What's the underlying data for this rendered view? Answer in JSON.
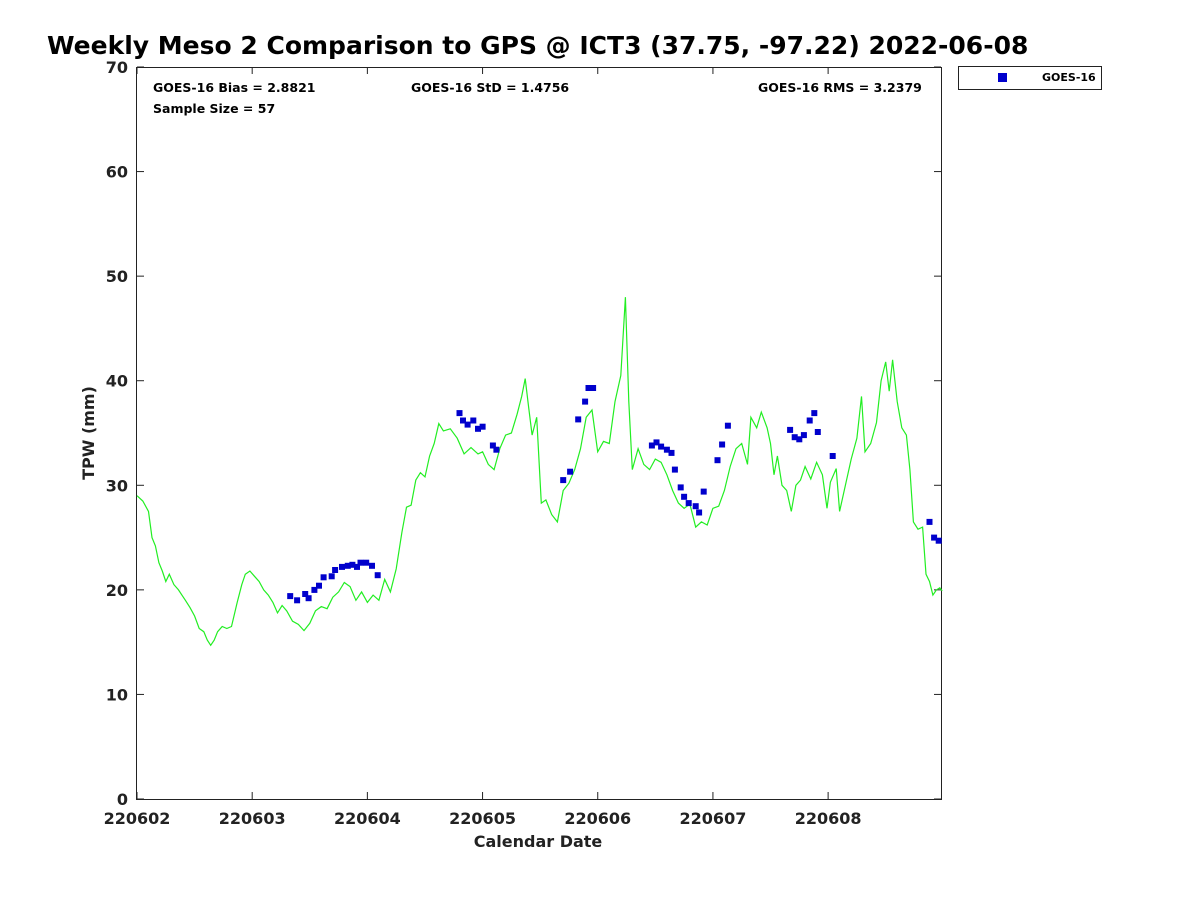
{
  "chart_data": {
    "type": "scatter",
    "title": "Weekly Meso 2 Comparison to GPS @ ICT3 (37.75, -97.22) 2022-06-08",
    "xlabel": "Calendar Date",
    "ylabel": "TPW (mm)",
    "xlim": [
      0,
      6.98
    ],
    "ylim": [
      0,
      70
    ],
    "yticks": [
      0,
      10,
      20,
      30,
      40,
      50,
      60,
      70
    ],
    "xticks": [
      {
        "value": 0,
        "label": "220602"
      },
      {
        "value": 1,
        "label": "220603"
      },
      {
        "value": 2,
        "label": "220604"
      },
      {
        "value": 3,
        "label": "220605"
      },
      {
        "value": 4,
        "label": "220606"
      },
      {
        "value": 5,
        "label": "220607"
      },
      {
        "value": 6,
        "label": "220608"
      }
    ],
    "x_note_units": "days after 220602",
    "grid": false,
    "legend_position": "top-right",
    "stats": {
      "bias": "GOES-16 Bias = 2.8821",
      "std": "GOES-16 StD = 1.4756",
      "rms": "GOES-16 RMS = 3.2379",
      "sample": "Sample Size = 57"
    },
    "series": [
      {
        "name": "GOES-16",
        "kind": "scatter",
        "color": "#0000cc",
        "points": [
          [
            1.33,
            19.4
          ],
          [
            1.39,
            19.0
          ],
          [
            1.46,
            19.6
          ],
          [
            1.49,
            19.2
          ],
          [
            1.54,
            20.0
          ],
          [
            1.58,
            20.4
          ],
          [
            1.62,
            21.2
          ],
          [
            1.69,
            21.3
          ],
          [
            1.72,
            21.9
          ],
          [
            1.78,
            22.2
          ],
          [
            1.83,
            22.3
          ],
          [
            1.87,
            22.4
          ],
          [
            1.91,
            22.2
          ],
          [
            1.94,
            22.6
          ],
          [
            1.99,
            22.6
          ],
          [
            2.04,
            22.3
          ],
          [
            2.09,
            21.4
          ],
          [
            2.8,
            36.9
          ],
          [
            2.83,
            36.2
          ],
          [
            2.87,
            35.8
          ],
          [
            2.92,
            36.2
          ],
          [
            2.96,
            35.4
          ],
          [
            3.0,
            35.6
          ],
          [
            3.09,
            33.8
          ],
          [
            3.12,
            33.4
          ],
          [
            3.7,
            30.5
          ],
          [
            3.76,
            31.3
          ],
          [
            3.83,
            36.3
          ],
          [
            3.89,
            38.0
          ],
          [
            3.92,
            39.3
          ],
          [
            3.96,
            39.3
          ],
          [
            4.47,
            33.8
          ],
          [
            4.51,
            34.1
          ],
          [
            4.55,
            33.7
          ],
          [
            4.6,
            33.4
          ],
          [
            4.64,
            33.1
          ],
          [
            4.67,
            31.5
          ],
          [
            4.72,
            29.8
          ],
          [
            4.75,
            28.9
          ],
          [
            4.79,
            28.3
          ],
          [
            4.85,
            28.0
          ],
          [
            4.88,
            27.4
          ],
          [
            4.92,
            29.4
          ],
          [
            5.04,
            32.4
          ],
          [
            5.08,
            33.9
          ],
          [
            5.13,
            35.7
          ],
          [
            5.67,
            35.3
          ],
          [
            5.71,
            34.6
          ],
          [
            5.75,
            34.4
          ],
          [
            5.79,
            34.8
          ],
          [
            5.84,
            36.2
          ],
          [
            5.88,
            36.9
          ],
          [
            5.91,
            35.1
          ],
          [
            6.04,
            32.8
          ],
          [
            6.88,
            26.5
          ],
          [
            6.92,
            25.0
          ],
          [
            6.96,
            24.7
          ]
        ]
      },
      {
        "kind": "line",
        "color": "#22ee22",
        "points": [
          [
            0.0,
            29.0
          ],
          [
            0.05,
            28.5
          ],
          [
            0.1,
            27.5
          ],
          [
            0.13,
            25.0
          ],
          [
            0.16,
            24.2
          ],
          [
            0.19,
            22.6
          ],
          [
            0.22,
            21.8
          ],
          [
            0.25,
            20.8
          ],
          [
            0.28,
            21.5
          ],
          [
            0.32,
            20.5
          ],
          [
            0.36,
            20.0
          ],
          [
            0.39,
            19.5
          ],
          [
            0.42,
            19.0
          ],
          [
            0.46,
            18.3
          ],
          [
            0.5,
            17.5
          ],
          [
            0.54,
            16.3
          ],
          [
            0.58,
            16.0
          ],
          [
            0.61,
            15.2
          ],
          [
            0.64,
            14.7
          ],
          [
            0.67,
            15.2
          ],
          [
            0.7,
            16.0
          ],
          [
            0.74,
            16.5
          ],
          [
            0.78,
            16.3
          ],
          [
            0.82,
            16.5
          ],
          [
            0.87,
            18.8
          ],
          [
            0.91,
            20.5
          ],
          [
            0.94,
            21.5
          ],
          [
            0.98,
            21.8
          ],
          [
            1.02,
            21.3
          ],
          [
            1.06,
            20.8
          ],
          [
            1.1,
            20.0
          ],
          [
            1.14,
            19.5
          ],
          [
            1.18,
            18.8
          ],
          [
            1.22,
            17.8
          ],
          [
            1.26,
            18.5
          ],
          [
            1.3,
            18.0
          ],
          [
            1.35,
            17.0
          ],
          [
            1.4,
            16.7
          ],
          [
            1.45,
            16.1
          ],
          [
            1.5,
            16.8
          ],
          [
            1.55,
            18.0
          ],
          [
            1.6,
            18.4
          ],
          [
            1.65,
            18.2
          ],
          [
            1.7,
            19.3
          ],
          [
            1.75,
            19.8
          ],
          [
            1.8,
            20.7
          ],
          [
            1.85,
            20.3
          ],
          [
            1.9,
            19.0
          ],
          [
            1.95,
            19.8
          ],
          [
            2.0,
            18.8
          ],
          [
            2.05,
            19.5
          ],
          [
            2.1,
            19.0
          ],
          [
            2.15,
            21.0
          ],
          [
            2.2,
            19.8
          ],
          [
            2.25,
            22.0
          ],
          [
            2.3,
            25.5
          ],
          [
            2.34,
            27.9
          ],
          [
            2.38,
            28.1
          ],
          [
            2.42,
            30.5
          ],
          [
            2.46,
            31.2
          ],
          [
            2.5,
            30.8
          ],
          [
            2.54,
            32.8
          ],
          [
            2.58,
            34.0
          ],
          [
            2.62,
            35.9
          ],
          [
            2.66,
            35.2
          ],
          [
            2.72,
            35.4
          ],
          [
            2.78,
            34.5
          ],
          [
            2.84,
            33.0
          ],
          [
            2.9,
            33.6
          ],
          [
            2.96,
            33.0
          ],
          [
            3.0,
            33.2
          ],
          [
            3.05,
            32.0
          ],
          [
            3.1,
            31.5
          ],
          [
            3.15,
            33.5
          ],
          [
            3.2,
            34.8
          ],
          [
            3.25,
            35.0
          ],
          [
            3.3,
            36.8
          ],
          [
            3.34,
            38.5
          ],
          [
            3.37,
            40.2
          ],
          [
            3.4,
            37.5
          ],
          [
            3.43,
            34.8
          ],
          [
            3.47,
            36.5
          ],
          [
            3.51,
            28.3
          ],
          [
            3.55,
            28.6
          ],
          [
            3.6,
            27.2
          ],
          [
            3.65,
            26.5
          ],
          [
            3.7,
            29.5
          ],
          [
            3.75,
            30.2
          ],
          [
            3.8,
            31.5
          ],
          [
            3.85,
            33.5
          ],
          [
            3.9,
            36.5
          ],
          [
            3.95,
            37.2
          ],
          [
            4.0,
            33.2
          ],
          [
            4.05,
            34.2
          ],
          [
            4.1,
            34.0
          ],
          [
            4.15,
            38.0
          ],
          [
            4.2,
            40.5
          ],
          [
            4.24,
            48.0
          ],
          [
            4.27,
            38.0
          ],
          [
            4.3,
            31.5
          ],
          [
            4.35,
            33.5
          ],
          [
            4.4,
            32.0
          ],
          [
            4.45,
            31.5
          ],
          [
            4.5,
            32.5
          ],
          [
            4.55,
            32.2
          ],
          [
            4.6,
            31.0
          ],
          [
            4.65,
            29.5
          ],
          [
            4.7,
            28.3
          ],
          [
            4.75,
            27.8
          ],
          [
            4.8,
            28.2
          ],
          [
            4.85,
            26.0
          ],
          [
            4.9,
            26.5
          ],
          [
            4.95,
            26.2
          ],
          [
            5.0,
            27.8
          ],
          [
            5.05,
            28.0
          ],
          [
            5.1,
            29.5
          ],
          [
            5.15,
            31.8
          ],
          [
            5.2,
            33.5
          ],
          [
            5.25,
            34.0
          ],
          [
            5.3,
            32.0
          ],
          [
            5.33,
            36.5
          ],
          [
            5.38,
            35.5
          ],
          [
            5.42,
            37.0
          ],
          [
            5.47,
            35.5
          ],
          [
            5.5,
            34.0
          ],
          [
            5.53,
            31.0
          ],
          [
            5.56,
            32.8
          ],
          [
            5.6,
            30.0
          ],
          [
            5.64,
            29.5
          ],
          [
            5.68,
            27.5
          ],
          [
            5.72,
            30.0
          ],
          [
            5.76,
            30.5
          ],
          [
            5.8,
            31.8
          ],
          [
            5.85,
            30.6
          ],
          [
            5.9,
            32.2
          ],
          [
            5.95,
            31.0
          ],
          [
            5.99,
            27.8
          ],
          [
            6.02,
            30.3
          ],
          [
            6.07,
            31.6
          ],
          [
            6.1,
            27.5
          ],
          [
            6.15,
            30.0
          ],
          [
            6.2,
            32.5
          ],
          [
            6.25,
            34.5
          ],
          [
            6.29,
            38.5
          ],
          [
            6.32,
            33.2
          ],
          [
            6.37,
            34.0
          ],
          [
            6.42,
            36.0
          ],
          [
            6.46,
            40.0
          ],
          [
            6.5,
            41.8
          ],
          [
            6.53,
            39.0
          ],
          [
            6.56,
            42.0
          ],
          [
            6.6,
            38.0
          ],
          [
            6.64,
            35.5
          ],
          [
            6.68,
            34.8
          ],
          [
            6.71,
            31.5
          ],
          [
            6.74,
            26.5
          ],
          [
            6.78,
            25.8
          ],
          [
            6.82,
            26.0
          ],
          [
            6.85,
            21.5
          ],
          [
            6.88,
            20.8
          ],
          [
            6.91,
            19.5
          ],
          [
            6.94,
            20.0
          ],
          [
            6.97,
            20.2
          ],
          [
            6.99,
            19.9
          ]
        ]
      }
    ]
  }
}
